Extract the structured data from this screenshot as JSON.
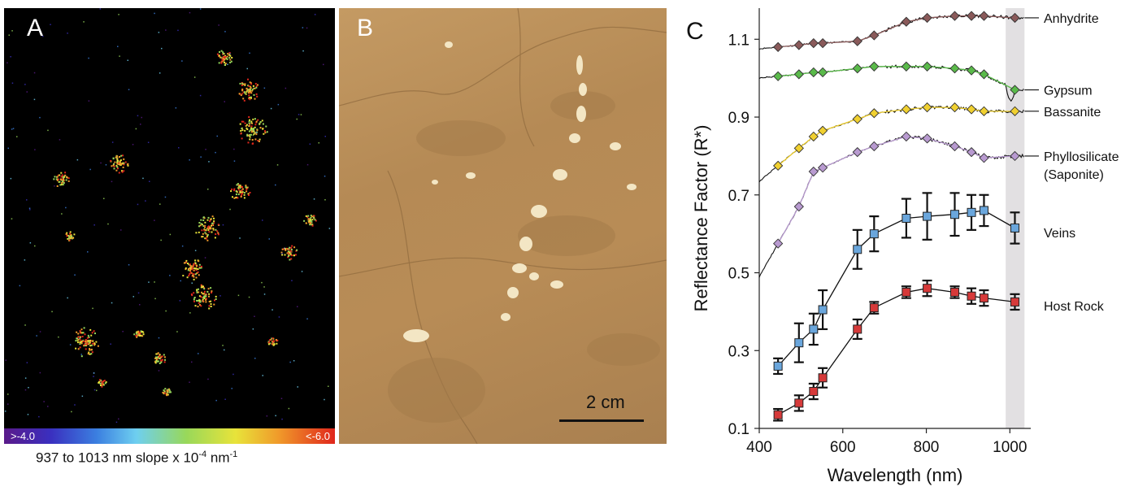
{
  "panel_a": {
    "letter": "A",
    "colorbar_left_label": ">-4.0",
    "colorbar_right_label": "<-6.0",
    "caption_main": "937 to 1013 nm slope x 10",
    "caption_exp1": "-4",
    "caption_mid": " nm",
    "caption_exp2": "-1",
    "colors": [
      "#5a1a8a",
      "#3a2fbf",
      "#3b7fe0",
      "#6ecff0",
      "#98d85a",
      "#e8e33a",
      "#f09a2a",
      "#e0261c"
    ]
  },
  "panel_b": {
    "letter": "B",
    "scale_label": "2 cm"
  },
  "panel_c": {
    "letter": "C"
  },
  "chart_data": {
    "type": "line",
    "xlabel": "Wavelength (nm)",
    "ylabel": "Reflectance Factor (R*)",
    "xlim": [
      400,
      1050
    ],
    "ylim": [
      0.1,
      1.18
    ],
    "xticks": [
      400,
      600,
      800,
      1000
    ],
    "yticks": [
      0.1,
      0.3,
      0.5,
      0.7,
      0.9,
      1.1
    ],
    "shaded_band": [
      990,
      1035
    ],
    "series": [
      {
        "name": "Anhydrite",
        "color": "#8a5a5a",
        "marker": "diamond",
        "x": [
          445,
          495,
          530,
          552,
          635,
          675,
          752,
          802,
          868,
          908,
          938,
          1012
        ],
        "y": [
          1.08,
          1.085,
          1.09,
          1.09,
          1.095,
          1.11,
          1.145,
          1.155,
          1.16,
          1.16,
          1.16,
          1.155
        ]
      },
      {
        "name": "Gypsum",
        "color": "#5aba4a",
        "marker": "diamond",
        "x": [
          445,
          495,
          530,
          552,
          635,
          675,
          752,
          802,
          868,
          908,
          938,
          1012
        ],
        "y": [
          1.005,
          1.01,
          1.015,
          1.015,
          1.025,
          1.03,
          1.03,
          1.03,
          1.025,
          1.02,
          1.01,
          0.97
        ]
      },
      {
        "name": "Bassanite",
        "color": "#f0d030",
        "marker": "diamond",
        "x": [
          445,
          495,
          530,
          552,
          635,
          675,
          752,
          802,
          868,
          908,
          938,
          1012
        ],
        "y": [
          0.775,
          0.82,
          0.85,
          0.865,
          0.895,
          0.91,
          0.92,
          0.925,
          0.925,
          0.92,
          0.915,
          0.915
        ]
      },
      {
        "name": "Phyllosilicate",
        "name2": "(Saponite)",
        "color": "#b89ad0",
        "marker": "diamond",
        "x": [
          445,
          495,
          530,
          552,
          635,
          675,
          752,
          802,
          868,
          908,
          938,
          1012
        ],
        "y": [
          0.575,
          0.67,
          0.76,
          0.77,
          0.81,
          0.825,
          0.85,
          0.845,
          0.825,
          0.81,
          0.795,
          0.8
        ]
      },
      {
        "name": "Veins",
        "color": "#6aa6dc",
        "marker": "square",
        "x": [
          445,
          495,
          530,
          552,
          635,
          675,
          752,
          802,
          868,
          908,
          938,
          1012
        ],
        "y": [
          0.26,
          0.32,
          0.355,
          0.405,
          0.56,
          0.6,
          0.64,
          0.645,
          0.65,
          0.655,
          0.66,
          0.615
        ],
        "err": [
          0.02,
          0.05,
          0.04,
          0.05,
          0.05,
          0.045,
          0.05,
          0.06,
          0.055,
          0.045,
          0.04,
          0.04
        ]
      },
      {
        "name": "Host Rock",
        "color": "#d63a3a",
        "marker": "square",
        "x": [
          445,
          495,
          530,
          552,
          635,
          675,
          752,
          802,
          868,
          908,
          938,
          1012
        ],
        "y": [
          0.135,
          0.165,
          0.195,
          0.23,
          0.355,
          0.41,
          0.45,
          0.46,
          0.45,
          0.44,
          0.435,
          0.425
        ],
        "err": [
          0.015,
          0.02,
          0.02,
          0.025,
          0.025,
          0.015,
          0.015,
          0.02,
          0.015,
          0.02,
          0.02,
          0.02
        ]
      }
    ]
  }
}
